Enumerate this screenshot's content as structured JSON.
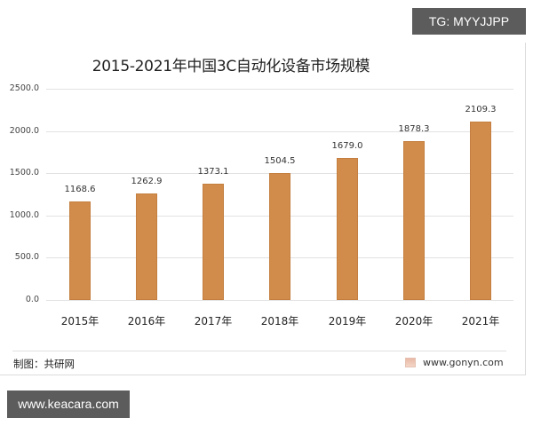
{
  "watermarks": {
    "top": "TG: MYYJJPP",
    "bottom": "www.keacara.com"
  },
  "footer": {
    "credit": "制图：共研网",
    "source": "www.gonyn.com",
    "source_icon": "gonyn-logo-icon"
  },
  "chart_data": {
    "type": "bar",
    "title": "2015-2021年中国3C自动化设备市场规模",
    "xlabel": "",
    "ylabel": "",
    "categories": [
      "2015年",
      "2016年",
      "2017年",
      "2018年",
      "2019年",
      "2020年",
      "2021年"
    ],
    "values": [
      1168.6,
      1262.9,
      1373.1,
      1504.5,
      1679.0,
      1878.3,
      2109.3
    ],
    "value_labels": [
      "1168.6",
      "1262.9",
      "1373.1",
      "1504.5",
      "1679.0",
      "1878.3",
      "2109.3"
    ],
    "yticks": [
      "0.0",
      "500.0",
      "1000.0",
      "1500.0",
      "2000.0",
      "2500.0"
    ],
    "ylim": [
      0,
      2500
    ],
    "grid": true,
    "legend": null,
    "bar_color": "#d18c4b"
  }
}
